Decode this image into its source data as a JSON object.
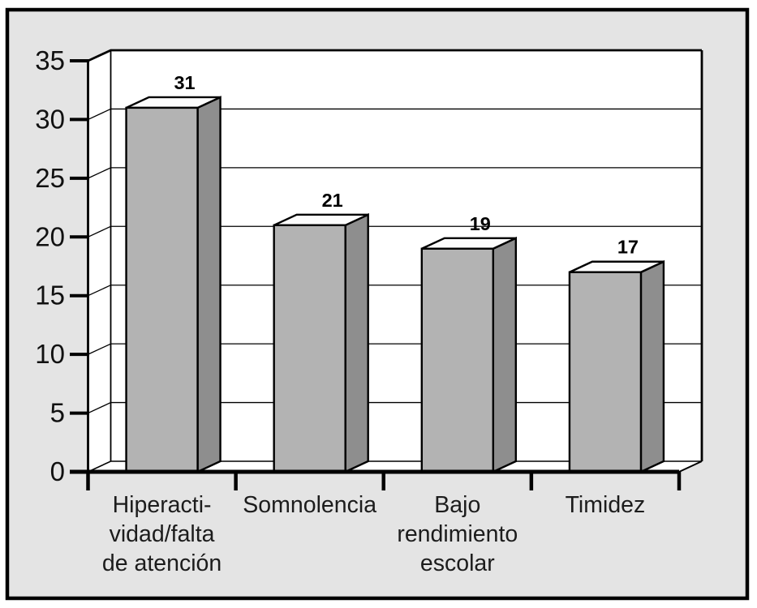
{
  "chart_data": {
    "type": "bar",
    "projection": "3d",
    "title": "",
    "xlabel": "",
    "ylabel": "",
    "categories": [
      "Hiperacti-\nvidad/falta\nde atención",
      "Somnolencia",
      "Bajo\nrendimiento\nescolar",
      "Timidez"
    ],
    "values": [
      31,
      21,
      19,
      17
    ],
    "bar_value_labels": [
      "31",
      "21",
      "19",
      "17"
    ],
    "ylim": [
      0,
      35
    ],
    "yticks": [
      0,
      5,
      10,
      15,
      20,
      25,
      30,
      35
    ],
    "ytick_labels": [
      "0",
      "5",
      "10",
      "15",
      "20",
      "25",
      "30",
      "35"
    ],
    "grid": true,
    "legend": "none",
    "colors": {
      "canvas_bg": "#e4e4e4",
      "plot_bg": "#ffffff",
      "bar_front": "#b3b3b3",
      "bar_side": "#8e8e8e",
      "bar_top": "#fcfcfc",
      "outline": "#000000",
      "grid_line": "#000000",
      "tick_label": "#111111",
      "category_label": "#1c1c1c",
      "value_label": "#000000"
    }
  }
}
